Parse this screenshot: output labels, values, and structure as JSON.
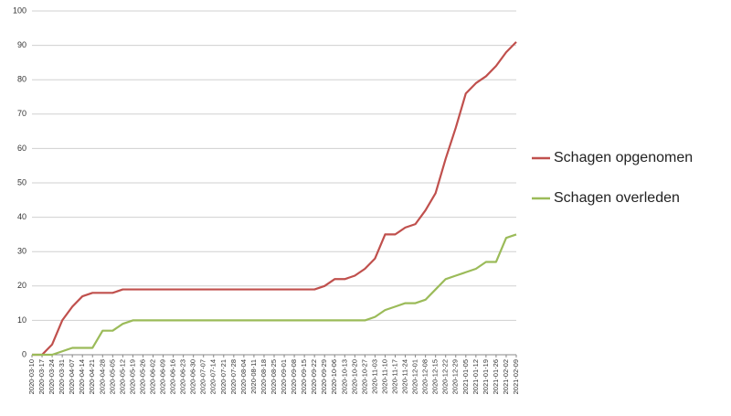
{
  "chart_data": {
    "type": "line",
    "categories": [
      "2020-03-10",
      "2020-03-17",
      "2020-03-24",
      "2020-03-31",
      "2020-04-07",
      "2020-04-14",
      "2020-04-21",
      "2020-04-28",
      "2020-05-05",
      "2020-05-12",
      "2020-05-19",
      "2020-05-26",
      "2020-06-02",
      "2020-06-09",
      "2020-06-16",
      "2020-06-23",
      "2020-06-30",
      "2020-07-07",
      "2020-07-14",
      "2020-07-21",
      "2020-07-28",
      "2020-08-04",
      "2020-08-11",
      "2020-08-18",
      "2020-08-25",
      "2020-09-01",
      "2020-09-08",
      "2020-09-15",
      "2020-09-22",
      "2020-09-29",
      "2020-10-06",
      "2020-10-13",
      "2020-10-20",
      "2020-10-27",
      "2020-11-03",
      "2020-11-10",
      "2020-11-17",
      "2020-11-24",
      "2020-12-01",
      "2020-12-08",
      "2020-12-15",
      "2020-12-22",
      "2020-12-29",
      "2021-01-05",
      "2021-01-12",
      "2021-01-19",
      "2021-01-26",
      "2021-02-02",
      "2021-02-09"
    ],
    "series": [
      {
        "name": "Schagen opgenomen",
        "color": "#c0504d",
        "values": [
          0,
          0,
          3,
          10,
          14,
          17,
          18,
          18,
          18,
          19,
          19,
          19,
          19,
          19,
          19,
          19,
          19,
          19,
          19,
          19,
          19,
          19,
          19,
          19,
          19,
          19,
          19,
          19,
          19,
          20,
          22,
          22,
          23,
          25,
          28,
          35,
          35,
          37,
          38,
          42,
          47,
          57,
          66,
          76,
          79,
          81,
          84,
          88,
          91
        ]
      },
      {
        "name": "Schagen overleden",
        "color": "#9bbb59",
        "values": [
          0,
          0,
          0,
          1,
          2,
          2,
          2,
          7,
          7,
          9,
          10,
          10,
          10,
          10,
          10,
          10,
          10,
          10,
          10,
          10,
          10,
          10,
          10,
          10,
          10,
          10,
          10,
          10,
          10,
          10,
          10,
          10,
          10,
          10,
          11,
          13,
          14,
          15,
          15,
          16,
          19,
          22,
          23,
          24,
          25,
          27,
          27,
          34,
          35
        ]
      }
    ],
    "ylim": [
      0,
      100
    ],
    "yticks": [
      0,
      10,
      20,
      30,
      40,
      50,
      60,
      70,
      80,
      90,
      100
    ],
    "grid": true,
    "legend": "right"
  }
}
